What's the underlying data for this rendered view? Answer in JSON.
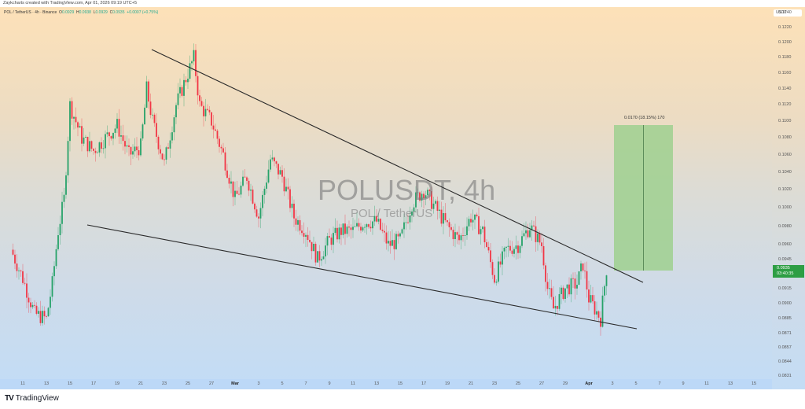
{
  "credit": "Zaykcharts created with TradingView.com, Apr 01, 2026 09:19 UTC+5",
  "legend": {
    "symbol": "POL / TetherUS · 4h · Binance",
    "o_label": "O",
    "o": "0.0929",
    "h_label": "H",
    "h": "0.0938",
    "l_label": "L",
    "l": "0.0929",
    "c_label": "C",
    "c": "0.0935",
    "change": "+0.0007 (+0.75%)"
  },
  "watermark": {
    "title": "POLUSDT, 4h",
    "subtitle": "POL / TetherUS"
  },
  "price_axis": {
    "currency": "USDT",
    "labels": [
      "0.1240",
      "0.1220",
      "0.1200",
      "0.1180",
      "0.1160",
      "0.1140",
      "0.1120",
      "0.1100",
      "0.1080",
      "0.1060",
      "0.1040",
      "0.1020",
      "0.1000",
      "0.0980",
      "0.0960",
      "0.0945",
      "0.0915",
      "0.0900",
      "0.0885",
      "0.0871",
      "0.0857",
      "0.0844",
      "0.0831"
    ],
    "current_price": "0.0935",
    "countdown": "03:40:35"
  },
  "time_axis": {
    "labels": [
      "11",
      "13",
      "15",
      "17",
      "19",
      "21",
      "23",
      "25",
      "27",
      "Mar",
      "3",
      "5",
      "7",
      "9",
      "11",
      "13",
      "15",
      "17",
      "19",
      "21",
      "23",
      "25",
      "27",
      "29",
      "Apr",
      "3",
      "5",
      "7",
      "9",
      "11",
      "13",
      "15"
    ],
    "bold": [
      "Mar",
      "Apr"
    ]
  },
  "measure": {
    "label": "0.0170 (18.15%) 170"
  },
  "footer": {
    "brand": "TradingView",
    "logo": "TV"
  },
  "colors": {
    "up": "#26a269",
    "down": "#f23645",
    "trendline": "#2a2a2a",
    "measure_fill": "#9fd08f",
    "price_badge": "#2e9e44"
  },
  "chart_data": {
    "type": "candlestick",
    "title": "POLUSDT, 4h",
    "subtitle": "POL / TetherUS · Binance",
    "xlabel": "",
    "ylabel": "USDT",
    "y_scale": "log",
    "ylim": [
      0.0825,
      0.1255
    ],
    "x_range": [
      "Feb 10",
      "Apr 16"
    ],
    "close_path": [
      [
        "Feb 10",
        0.0955
      ],
      [
        "Feb 11",
        0.0925
      ],
      [
        "Feb 12",
        0.089
      ],
      [
        "Feb 13",
        0.0885
      ],
      [
        "Feb 13.5",
        0.092
      ],
      [
        "Feb 14",
        0.0975
      ],
      [
        "Feb 14.5",
        0.101
      ],
      [
        "Feb 15",
        0.112
      ],
      [
        "Feb 16",
        0.108
      ],
      [
        "Feb 17",
        0.1065
      ],
      [
        "Feb 18",
        0.108
      ],
      [
        "Feb 19",
        0.1095
      ],
      [
        "Feb 20",
        0.106
      ],
      [
        "Feb 21",
        0.107
      ],
      [
        "Feb 21.5",
        0.114
      ],
      [
        "Feb 22",
        0.11
      ],
      [
        "Feb 23",
        0.105
      ],
      [
        "Feb 24",
        0.112
      ],
      [
        "Feb 25",
        0.116
      ],
      [
        "Feb 25.5",
        0.118
      ],
      [
        "Feb 26",
        0.112
      ],
      [
        "Feb 27",
        0.11
      ],
      [
        "Feb 28",
        0.106
      ],
      [
        "Mar 1",
        0.101
      ],
      [
        "Mar 2",
        0.1035
      ],
      [
        "Mar 3",
        0.099
      ],
      [
        "Mar 4",
        0.1055
      ],
      [
        "Mar 5",
        0.1035
      ],
      [
        "Mar 6",
        0.099
      ],
      [
        "Mar 7",
        0.0975
      ],
      [
        "Mar 8",
        0.0945
      ],
      [
        "Mar 9",
        0.0965
      ],
      [
        "Mar 10",
        0.0975
      ],
      [
        "Mar 11",
        0.0975
      ],
      [
        "Mar 12",
        0.0985
      ],
      [
        "Mar 13",
        0.0985
      ],
      [
        "Mar 14",
        0.096
      ],
      [
        "Mar 15",
        0.0965
      ],
      [
        "Mar 16",
        0.1005
      ],
      [
        "Mar 17",
        0.102
      ],
      [
        "Mar 18",
        0.1
      ],
      [
        "Mar 19",
        0.098
      ],
      [
        "Mar 20",
        0.0965
      ],
      [
        "Mar 21",
        0.099
      ],
      [
        "Mar 22",
        0.0975
      ],
      [
        "Mar 23",
        0.0925
      ],
      [
        "Mar 24",
        0.0955
      ],
      [
        "Mar 25",
        0.096
      ],
      [
        "Mar 26",
        0.098
      ],
      [
        "Mar 27",
        0.096
      ],
      [
        "Mar 27.5",
        0.0915
      ],
      [
        "Mar 28",
        0.0895
      ],
      [
        "Mar 29",
        0.0915
      ],
      [
        "Mar 30",
        0.092
      ],
      [
        "Mar 30.5",
        0.094
      ],
      [
        "Mar 31",
        0.0905
      ],
      [
        "Apr 1",
        0.0885
      ],
      [
        "Apr 1.5",
        0.0935
      ]
    ],
    "annotations": [
      {
        "type": "trendline",
        "name": "upper resistance",
        "from": [
          "Feb 22",
          0.1205
        ],
        "to": [
          "Apr 5",
          0.0925
        ]
      },
      {
        "type": "trendline",
        "name": "lower support",
        "from": [
          "Feb 16.5",
          0.099
        ],
        "to": [
          "Apr 4.5",
          0.0878
        ]
      },
      {
        "type": "price_range",
        "from": 0.094,
        "to": 0.111,
        "label": "0.0170 (18.15%) 170"
      }
    ],
    "last": {
      "open": 0.0929,
      "high": 0.0938,
      "low": 0.0929,
      "close": 0.0935,
      "change": 0.0007,
      "change_pct": 0.75
    }
  }
}
